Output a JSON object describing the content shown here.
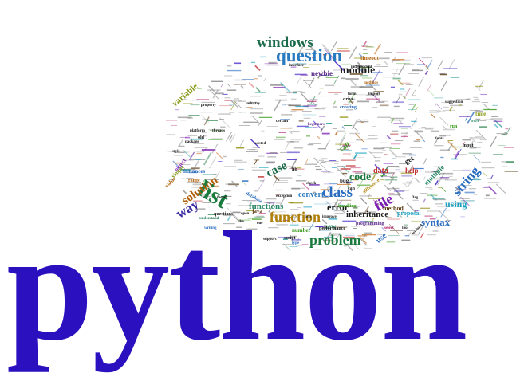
{
  "colors": {
    "python": "#2b10c0",
    "palette": [
      "#1b7a3e",
      "#2a6cc0",
      "#7a1bb0",
      "#3a9a1a",
      "#c0600a",
      "#0a8a8a",
      "#b01060",
      "#5a3a10",
      "#2b10c0",
      "#8a8a00",
      "#c02a2a",
      "#1aa0c0",
      "#6a2ab0"
    ]
  },
  "title_word": "python",
  "words": [
    {
      "text": "windows",
      "c": "#1b6a4a"
    },
    {
      "text": "question",
      "c": "#2a7ac0"
    },
    {
      "text": "module",
      "c": "#1a1a1a"
    },
    {
      "text": "newbie",
      "c": "#5a2a8a"
    },
    {
      "text": "timeout",
      "c": "#b0600a"
    },
    {
      "text": "variable",
      "c": "#8a9a1a"
    },
    {
      "text": "list",
      "c": "#1b7a3e"
    },
    {
      "text": "case",
      "c": "#1a6a4a"
    },
    {
      "text": "class",
      "c": "#2a6cc0"
    },
    {
      "text": "code",
      "c": "#1b7a3e"
    },
    {
      "text": "file",
      "c": "#7a1bb0"
    },
    {
      "text": "string",
      "c": "#2a6cc0"
    },
    {
      "text": "way",
      "c": "#3a2aa0"
    },
    {
      "text": "solution",
      "c": "#b0600a"
    },
    {
      "text": "function",
      "c": "#b0800a"
    },
    {
      "text": "functions",
      "c": "#2a8a6a"
    },
    {
      "text": "error",
      "c": "#1a1a1a"
    },
    {
      "text": "data",
      "c": "#c02a2a"
    },
    {
      "text": "problem",
      "c": "#1b7a3e"
    },
    {
      "text": "syntax",
      "c": "#2a6cc0"
    },
    {
      "text": "using",
      "c": "#1aa0c0"
    },
    {
      "text": "inheritance",
      "c": "#1a1a1a"
    },
    {
      "text": "convert",
      "c": "#2a7ac0"
    },
    {
      "text": "method",
      "c": "#5a3a10"
    },
    {
      "text": "help",
      "c": "#c02a2a"
    },
    {
      "text": "use",
      "c": "#2a6cc0"
    },
    {
      "text": "new",
      "c": "#2a8a6a"
    },
    {
      "text": "get",
      "c": "#1a1a1a"
    },
    {
      "text": "multiple",
      "c": "#2a8a6a"
    },
    {
      "text": "java",
      "c": "#5a3a10"
    },
    {
      "text": "number",
      "c": "#3a9a1a"
    },
    {
      "text": "questions",
      "c": "#1a1a1a"
    },
    {
      "text": "script",
      "c": "#1a1a1a"
    },
    {
      "text": "proposal",
      "c": "#1aa0c0"
    },
    {
      "text": "performance",
      "c": "#1a1a1a"
    },
    {
      "text": "programming",
      "c": "#5a2a8a"
    },
    {
      "text": "instances",
      "c": "#2a6cc0"
    },
    {
      "text": "range",
      "c": "#b0600a"
    },
    {
      "text": "value",
      "c": "#b0600a"
    },
    {
      "text": "object",
      "c": "#7a1bb0"
    },
    {
      "text": "time",
      "c": "#8a9a1a"
    },
    {
      "text": "database",
      "c": "#2a6cc0"
    },
    {
      "text": "bug",
      "c": "#1a1a1a"
    },
    {
      "text": "check",
      "c": "#1a1a1a"
    },
    {
      "text": "writing",
      "c": "#2a6cc0"
    },
    {
      "text": "support",
      "c": "#1a1a1a"
    },
    {
      "text": "type",
      "c": "#2a6cc0"
    },
    {
      "text": "exception",
      "c": "#1a1a1a"
    },
    {
      "text": "install",
      "c": "#1a1a1a"
    },
    {
      "text": "lists",
      "c": "#1a1a1a"
    },
    {
      "text": "improve",
      "c": "#1a1a1a"
    },
    {
      "text": "select",
      "c": "#b01060"
    },
    {
      "text": "tool",
      "c": "#1a1a1a"
    },
    {
      "text": "without",
      "c": "#1a1a1a"
    },
    {
      "text": "simple",
      "c": "#8a9a1a"
    },
    {
      "text": "style",
      "c": "#1a1a1a"
    },
    {
      "text": "open",
      "c": "#1a1a1a"
    },
    {
      "text": "handling",
      "c": "#3a9a1a"
    },
    {
      "text": "like",
      "c": "#1a1a1a"
    },
    {
      "text": "one",
      "c": "#1a1a1a"
    },
    {
      "text": "call",
      "c": "#3a9a1a"
    },
    {
      "text": "understand",
      "c": "#2a8a6a"
    },
    {
      "text": "methods",
      "c": "#b0600a"
    },
    {
      "text": "difference",
      "c": "#b0800a"
    },
    {
      "text": "input",
      "c": "#1a1a1a"
    },
    {
      "text": "creating",
      "c": "#2a6cc0"
    },
    {
      "text": "beginners",
      "c": "#5a2a8a"
    },
    {
      "text": "run",
      "c": "#3a9a1a"
    },
    {
      "text": "work",
      "c": "#2a8a6a"
    },
    {
      "text": "can",
      "c": "#1a1a1a"
    },
    {
      "text": "flag",
      "c": "#1a1a1a"
    },
    {
      "text": "form",
      "c": "#1a1a1a"
    },
    {
      "text": "certain",
      "c": "#1a1a1a"
    },
    {
      "text": "drive",
      "c": "#1a1a1a"
    },
    {
      "text": "interface",
      "c": "#1a1a1a"
    },
    {
      "text": "import",
      "c": "#1a1a1a"
    },
    {
      "text": "independent",
      "c": "#1a1a1a"
    },
    {
      "text": "industry",
      "c": "#1a1a1a"
    },
    {
      "text": "property",
      "c": "#1a1a1a"
    },
    {
      "text": "platform",
      "c": "#1a1a1a"
    },
    {
      "text": "package",
      "c": "#1a1a1a"
    },
    {
      "text": "threads",
      "c": "#1a1a1a"
    },
    {
      "text": "fonts",
      "c": "#1a1a1a"
    },
    {
      "text": "old",
      "c": "#1a1a1a"
    },
    {
      "text": "lib",
      "c": "#1a1a1a"
    },
    {
      "text": "suggestion",
      "c": "#1a1a1a"
    },
    {
      "text": "twisted",
      "c": "#1a1a1a"
    }
  ]
}
